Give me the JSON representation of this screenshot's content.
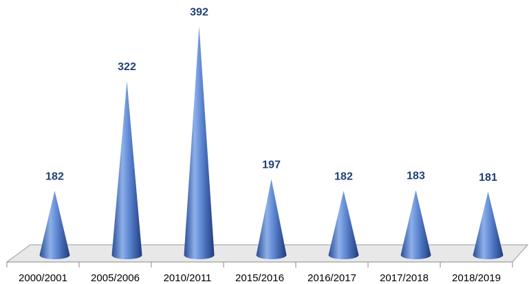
{
  "chart_data": {
    "type": "cone",
    "categories": [
      "2000/2001",
      "2005/2006",
      "2010/2011",
      "2015/2016",
      "2016/2017",
      "2017/2018",
      "2018/2019"
    ],
    "values": [
      182,
      322,
      392,
      197,
      182,
      183,
      181
    ],
    "color": "#3c64b4",
    "ylim": [
      100,
      400
    ]
  }
}
